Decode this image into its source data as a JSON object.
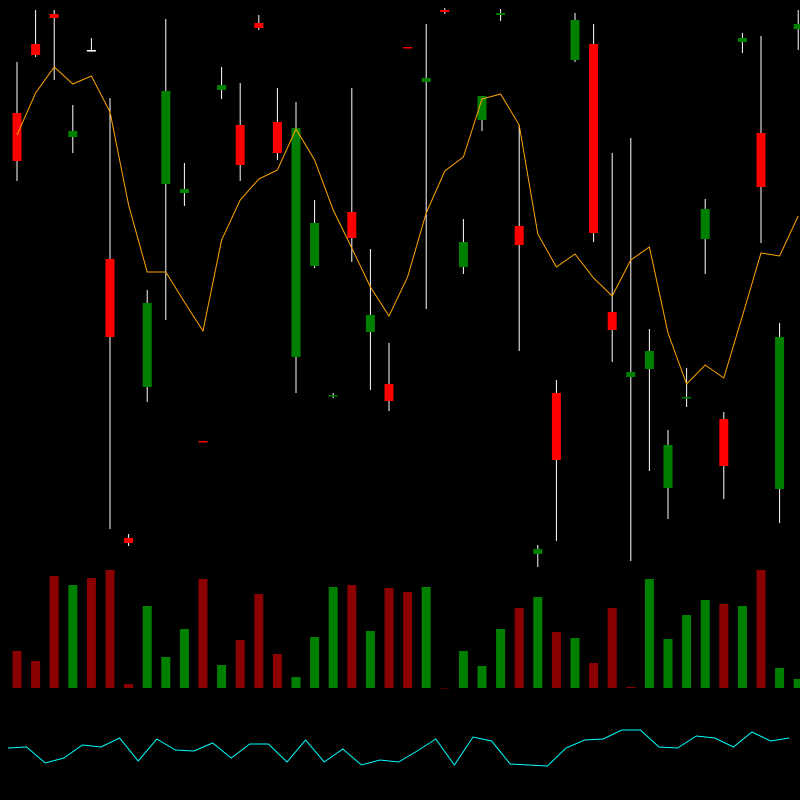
{
  "chart_data": {
    "type": "candlestick",
    "title": "",
    "grid": false,
    "colors": {
      "background": "#000000",
      "up": "#008000",
      "down": "#ff0000",
      "wick": "#ffffff",
      "volume_up": "#008000",
      "volume_down": "#8b0000",
      "moving_average": "#ffa500",
      "indicator": "#00ffff"
    },
    "candles": [
      [
        487,
        538,
        419,
        439
      ],
      [
        556,
        590,
        543,
        545
      ],
      [
        586,
        590,
        520,
        582
      ],
      [
        463,
        495,
        447,
        469
      ],
      [
        550,
        562,
        548,
        550
      ],
      [
        341,
        502,
        71,
        263
      ],
      [
        62,
        66,
        54,
        57
      ],
      [
        213,
        310,
        198,
        297
      ],
      [
        416,
        581,
        280,
        509
      ],
      [
        407,
        437,
        394,
        411
      ],
      [
        159,
        159,
        158,
        158
      ],
      [
        510,
        533,
        501,
        515
      ],
      [
        475,
        517,
        419,
        435
      ],
      [
        577,
        585,
        570,
        572
      ],
      [
        478,
        512,
        440,
        447
      ],
      [
        243,
        498,
        207,
        472
      ],
      [
        334,
        400,
        332,
        377
      ],
      [
        204,
        207,
        202,
        205
      ],
      [
        388,
        512,
        338,
        362
      ],
      [
        268,
        351,
        210,
        285
      ],
      [
        216,
        257,
        189,
        199
      ],
      [
        553,
        553,
        552,
        552
      ],
      [
        518,
        576,
        291,
        522
      ],
      [
        590,
        592,
        586,
        588
      ],
      [
        333,
        381,
        326,
        358
      ],
      [
        480,
        504,
        469,
        504
      ],
      [
        585,
        591,
        579,
        587
      ],
      [
        374,
        475,
        249,
        355
      ],
      [
        46,
        55,
        33,
        51
      ],
      [
        207,
        220,
        59,
        140
      ],
      [
        540,
        587,
        538,
        580
      ],
      [
        556,
        576,
        358,
        367
      ],
      [
        288,
        447,
        238,
        270
      ],
      [
        223,
        462,
        39,
        228
      ],
      [
        231,
        271,
        129,
        249
      ],
      [
        112,
        170,
        81,
        155
      ],
      [
        202,
        232,
        193,
        203
      ],
      [
        361,
        401,
        326,
        391
      ],
      [
        181,
        188,
        101,
        134
      ],
      [
        558,
        567,
        547,
        562
      ],
      [
        467,
        564,
        357,
        413
      ],
      [
        111,
        277,
        77,
        263
      ],
      [
        571,
        590,
        550,
        576
      ]
    ],
    "moving_average": [
      465,
      507,
      533,
      516,
      524,
      488,
      395,
      328,
      328,
      298,
      269,
      360,
      400,
      421,
      430,
      471,
      440,
      390,
      352,
      313,
      284,
      323,
      387,
      429,
      443,
      501,
      506,
      475,
      366,
      333,
      346,
      322,
      304,
      340,
      353,
      267,
      216,
      235,
      222,
      284,
      347,
      344,
      384
    ],
    "volume": [
      37,
      27,
      112,
      103,
      110,
      118,
      4,
      82,
      31,
      59,
      109,
      23,
      48,
      94,
      34,
      11,
      51,
      101,
      103,
      57,
      100,
      96,
      101,
      0,
      37,
      22,
      59,
      80,
      91,
      56,
      50,
      25,
      80,
      1,
      109,
      49,
      73,
      88,
      84,
      82,
      118,
      20,
      9
    ],
    "volume_direction": [
      "down",
      "down",
      "down",
      "up",
      "down",
      "down",
      "down",
      "up",
      "up",
      "up",
      "down",
      "up",
      "down",
      "down",
      "down",
      "up",
      "up",
      "up",
      "down",
      "up",
      "down",
      "down",
      "up",
      "down",
      "up",
      "up",
      "up",
      "down",
      "up",
      "down",
      "up",
      "down",
      "down",
      "down",
      "up",
      "up",
      "up",
      "up",
      "down",
      "up",
      "down",
      "up",
      "up"
    ],
    "indicator": [
      52,
      53,
      37,
      42,
      55,
      53,
      62,
      39,
      61,
      50,
      49,
      57,
      42,
      56,
      56,
      38,
      60,
      38,
      51,
      35,
      40,
      38,
      49,
      61,
      35,
      63,
      59,
      36,
      35,
      34,
      52,
      60,
      61,
      70,
      70,
      53,
      52,
      64,
      62,
      53,
      68,
      59,
      62
    ]
  }
}
